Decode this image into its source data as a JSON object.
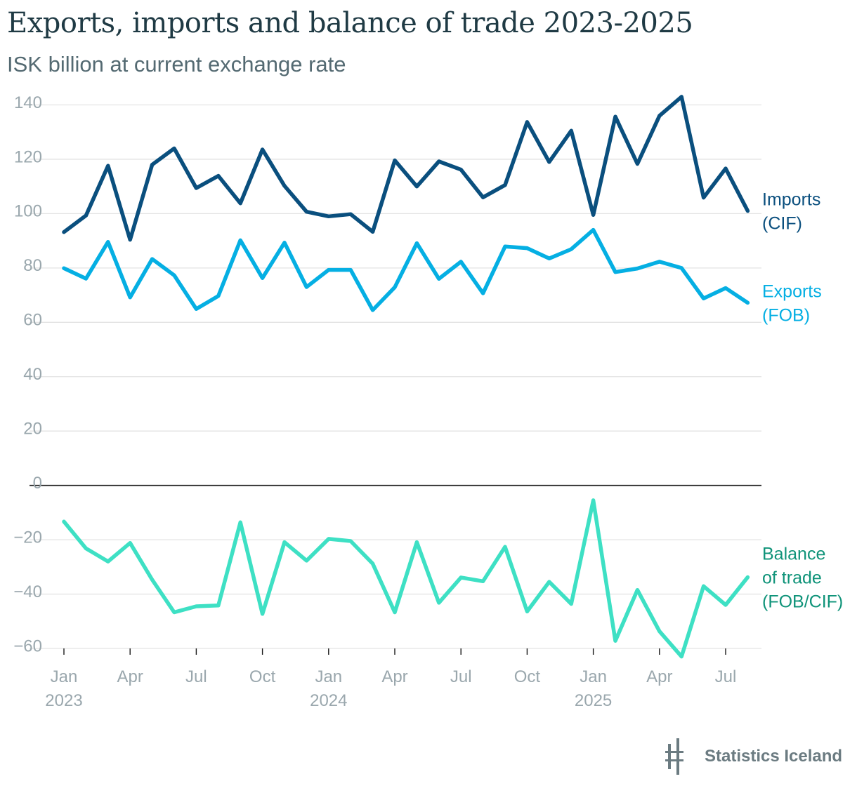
{
  "title": "Exports, imports and balance of trade 2023-2025",
  "subtitle": "ISK billion at current exchange rate",
  "logo": {
    "text": "Statistics Iceland"
  },
  "chart_data": {
    "type": "line",
    "title": "Exports, imports and balance of trade 2023-2025",
    "subtitle": "ISK billion at current exchange rate",
    "ylim": [
      -60,
      140
    ],
    "yticks": [
      140,
      120,
      100,
      80,
      60,
      40,
      20,
      0,
      -20,
      -40,
      -60
    ],
    "grid": true,
    "legend": "right",
    "x": [
      "2023-01",
      "2023-02",
      "2023-03",
      "2023-04",
      "2023-05",
      "2023-06",
      "2023-07",
      "2023-08",
      "2023-09",
      "2023-10",
      "2023-11",
      "2023-12",
      "2024-01",
      "2024-02",
      "2024-03",
      "2024-04",
      "2024-05",
      "2024-06",
      "2024-07",
      "2024-08",
      "2024-09",
      "2024-10",
      "2024-11",
      "2024-12",
      "2025-01",
      "2025-02",
      "2025-03",
      "2025-04",
      "2025-05",
      "2025-06",
      "2025-07",
      "2025-08"
    ],
    "xticks": [
      {
        "month": "Jan",
        "year": "2023"
      },
      {
        "month": "Apr",
        "year": ""
      },
      {
        "month": "Jul",
        "year": ""
      },
      {
        "month": "Oct",
        "year": ""
      },
      {
        "month": "Jan",
        "year": "2024"
      },
      {
        "month": "Apr",
        "year": ""
      },
      {
        "month": "Jul",
        "year": ""
      },
      {
        "month": "Oct",
        "year": ""
      },
      {
        "month": "Jan",
        "year": "2025"
      },
      {
        "month": "Apr",
        "year": ""
      },
      {
        "month": "Jul",
        "year": ""
      }
    ],
    "series": [
      {
        "name": "Imports (CIF)",
        "label_lines": [
          "Imports",
          "(CIF)"
        ],
        "color": "#0a4f7e",
        "values": [
          93.2,
          99.3,
          117.6,
          90.4,
          118.0,
          124.0,
          109.4,
          113.9,
          103.8,
          123.6,
          110.2,
          100.7,
          99.0,
          99.8,
          93.3,
          119.6,
          110.0,
          119.2,
          116.2,
          106.0,
          110.5,
          133.7,
          119.0,
          130.5,
          99.5,
          135.7,
          118.3,
          136.0,
          143.0,
          105.9,
          116.6,
          101.0
        ]
      },
      {
        "name": "Exports (FOB)",
        "label_lines": [
          "Exports",
          "(FOB)"
        ],
        "color": "#05afe3",
        "values": [
          79.9,
          76.1,
          89.6,
          69.2,
          83.3,
          77.3,
          64.9,
          69.7,
          90.2,
          76.3,
          89.3,
          73.0,
          79.3,
          79.3,
          64.5,
          72.9,
          89.1,
          76.0,
          82.3,
          70.7,
          87.9,
          87.3,
          83.5,
          86.9,
          94.0,
          78.5,
          79.8,
          82.3,
          80.0,
          68.8,
          72.6,
          67.2
        ]
      },
      {
        "name": "Balance of trade (FOB/CIF)",
        "label_lines": [
          "Balance",
          "of trade",
          "(FOB/CIF)"
        ],
        "color": "#3ee0c4",
        "label_color": "#0f9379",
        "values": [
          -13.3,
          -23.2,
          -28.0,
          -21.2,
          -34.7,
          -46.7,
          -44.5,
          -44.2,
          -13.6,
          -47.3,
          -20.9,
          -27.7,
          -19.7,
          -20.5,
          -28.8,
          -46.7,
          -20.9,
          -43.2,
          -33.9,
          -35.3,
          -22.6,
          -46.4,
          -35.5,
          -43.6,
          -5.5,
          -57.2,
          -38.5,
          -53.7,
          -63.0,
          -37.1,
          -44.0,
          -33.8
        ]
      }
    ]
  }
}
